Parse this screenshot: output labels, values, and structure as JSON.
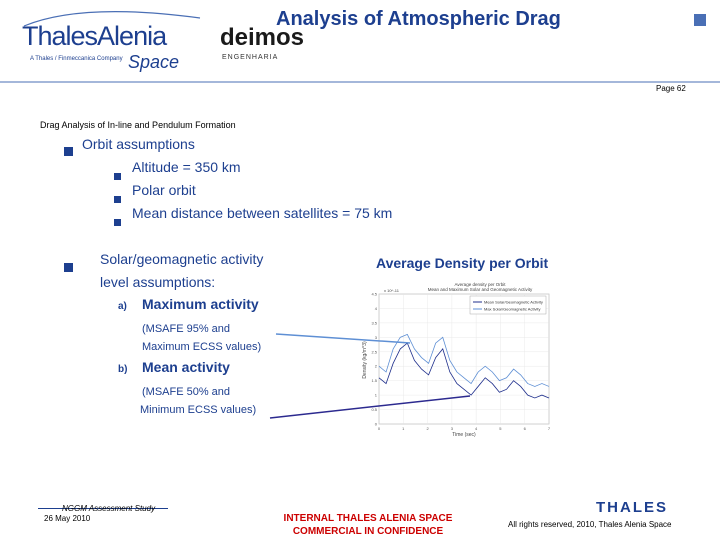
{
  "header": {
    "title": "Analysis of Atmospheric Drag",
    "page": "Page 62",
    "logo_thales_alenia": {
      "name": "ThalesAlenia",
      "tagline": "A Thales / Finmeccanica Company",
      "space": "Space"
    },
    "logo_deimos": {
      "name": "deimos",
      "sub": "ENGENHARIA"
    }
  },
  "section_heading": "Drag Analysis of In-line and Pendulum Formation",
  "orbit": {
    "label": "Orbit assumptions",
    "items": [
      "Altitude = 350 km",
      "Polar orbit",
      "Mean distance between satellites = 75 km"
    ]
  },
  "activity": {
    "label_line1": "Solar/geomagnetic activity",
    "label_line2": "level assumptions:",
    "items": [
      {
        "marker": "a)",
        "label": "Maximum activity",
        "note_line1": "(MSAFE 95% and",
        "note_line2": " Maximum ECSS values)"
      },
      {
        "marker": "b)",
        "label": "Mean activity",
        "note_line1": "(MSAFE 50% and",
        "note_line2": "Minimum ECSS values)"
      }
    ]
  },
  "chart_title": "Average Density per Orbit",
  "chart_data": {
    "type": "line",
    "x_ticks": [
      "0",
      "1",
      "2",
      "3",
      "4",
      "5",
      "6",
      "7"
    ],
    "y_ticks": [
      "0",
      "0.5",
      "1",
      "1.5",
      "2",
      "2.5",
      "3",
      "3.5",
      "4",
      "4.5"
    ],
    "y_scale_label": "x 10^-11",
    "xlabel": "Time (sec)",
    "ylabel": "Density (kg/m^3)",
    "ylim": [
      0,
      4.5
    ],
    "series": [
      {
        "name": "Mean Solar/Geomagnetic Activity",
        "color": "#1f2f8c",
        "values": [
          1.6,
          1.4,
          2.1,
          2.6,
          2.8,
          2.2,
          1.9,
          1.7,
          2.3,
          2.6,
          1.8,
          1.4,
          1.2,
          1.0,
          1.3,
          1.6,
          1.4,
          1.1,
          1.2,
          1.5,
          1.3,
          1.0,
          0.9,
          1.0,
          0.9
        ]
      },
      {
        "name": "Max Solar/Geomagnetic Activity",
        "color": "#5e8fd4",
        "values": [
          2.0,
          1.8,
          2.6,
          3.0,
          3.1,
          2.6,
          2.3,
          2.1,
          2.8,
          3.0,
          2.2,
          1.8,
          1.6,
          1.4,
          1.8,
          2.0,
          1.8,
          1.5,
          1.6,
          1.9,
          1.7,
          1.4,
          1.3,
          1.4,
          1.3
        ]
      }
    ]
  },
  "chart_inset": {
    "line1": "Average density per Orbit",
    "line2": "Mean and Maximum Solar and Geomagnetic Activity"
  },
  "footer": {
    "study": "NGGM Assessment Study",
    "date": "26 May 2010",
    "confidential_line1": "INTERNAL THALES ALENIA SPACE",
    "confidential_line2": "COMMERCIAL IN CONFIDENCE",
    "brand": "THALES",
    "rights": "All rights reserved, 2010, Thales Alenia Space"
  },
  "colors": {
    "brand_blue": "#1d3f8f",
    "confidential_red": "#cc0000",
    "arrow_light": "#5e8fd4",
    "arrow_dark": "#2c2a8f"
  }
}
